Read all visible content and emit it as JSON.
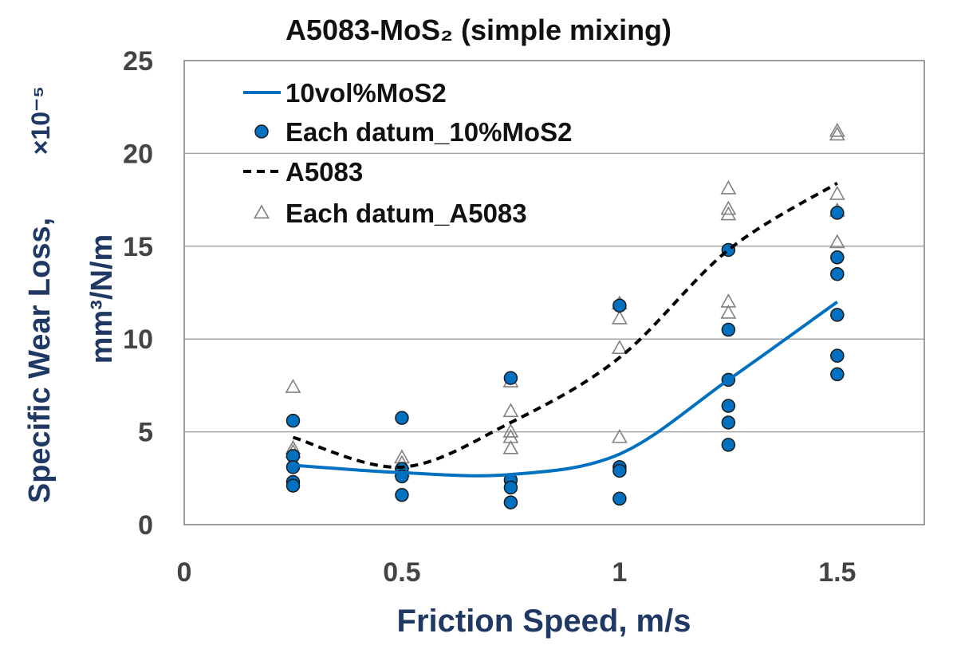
{
  "chart_data": {
    "type": "scatter",
    "title": "A5083-MoS₂ (simple mixing)",
    "xlabel": "Friction Speed, m/s",
    "ylabel": "Specific Wear Loss,",
    "ylabel_exponent": "×10⁻⁵",
    "ylabel_unit": "mm³/N/m",
    "xlim": [
      0,
      1.7
    ],
    "ylim": [
      0,
      25
    ],
    "x_ticks": [
      0,
      0.5,
      1,
      1.5
    ],
    "x_tick_labels": [
      "0",
      "0.5",
      "1",
      "1.5"
    ],
    "y_ticks": [
      0,
      5,
      10,
      15,
      20,
      25
    ],
    "y_tick_labels": [
      "0",
      "5",
      "10",
      "15",
      "20",
      "25"
    ],
    "grid": "horizontal",
    "legend_position": "top-left",
    "series": [
      {
        "name": "10vol%MoS2",
        "kind": "line",
        "style": "solid",
        "color": "#0070c0",
        "x": [
          0.25,
          0.5,
          0.75,
          1.0,
          1.25,
          1.5
        ],
        "y": [
          3.2,
          2.8,
          2.7,
          3.8,
          7.8,
          12.0
        ]
      },
      {
        "name": "Each datum_10%MoS2",
        "kind": "scatter",
        "marker": "circle",
        "color": "#0070c0",
        "points": [
          [
            0.25,
            5.6
          ],
          [
            0.25,
            3.7
          ],
          [
            0.25,
            3.1
          ],
          [
            0.25,
            2.3
          ],
          [
            0.25,
            2.1
          ],
          [
            0.5,
            5.75
          ],
          [
            0.5,
            3.0
          ],
          [
            0.5,
            2.6
          ],
          [
            0.5,
            1.6
          ],
          [
            0.75,
            7.9
          ],
          [
            0.75,
            2.4
          ],
          [
            0.75,
            2.0
          ],
          [
            0.75,
            1.2
          ],
          [
            1.0,
            11.8
          ],
          [
            1.0,
            3.1
          ],
          [
            1.0,
            2.9
          ],
          [
            1.0,
            1.4
          ],
          [
            1.25,
            14.8
          ],
          [
            1.25,
            10.5
          ],
          [
            1.25,
            7.8
          ],
          [
            1.25,
            6.4
          ],
          [
            1.25,
            5.5
          ],
          [
            1.25,
            4.3
          ],
          [
            1.5,
            16.8
          ],
          [
            1.5,
            14.4
          ],
          [
            1.5,
            13.5
          ],
          [
            1.5,
            11.3
          ],
          [
            1.5,
            9.1
          ],
          [
            1.5,
            8.1
          ]
        ]
      },
      {
        "name": "A5083",
        "kind": "line",
        "style": "dashed",
        "color": "#000000",
        "x": [
          0.25,
          0.5,
          0.75,
          1.0,
          1.25,
          1.5
        ],
        "y": [
          4.7,
          3.1,
          5.5,
          9.0,
          14.8,
          18.4
        ]
      },
      {
        "name": "Each datum_A5083",
        "kind": "scatter",
        "marker": "triangle",
        "color": "#808080",
        "points": [
          [
            0.25,
            7.4
          ],
          [
            0.25,
            4.1
          ],
          [
            0.25,
            3.9
          ],
          [
            0.5,
            3.6
          ],
          [
            0.5,
            3.3
          ],
          [
            0.5,
            2.9
          ],
          [
            0.75,
            7.7
          ],
          [
            0.75,
            6.1
          ],
          [
            0.75,
            5.0
          ],
          [
            0.75,
            4.7
          ],
          [
            0.75,
            4.1
          ],
          [
            1.0,
            11.9
          ],
          [
            1.0,
            11.1
          ],
          [
            1.0,
            9.5
          ],
          [
            1.0,
            4.7
          ],
          [
            1.25,
            18.1
          ],
          [
            1.25,
            17.0
          ],
          [
            1.25,
            16.7
          ],
          [
            1.25,
            12.0
          ],
          [
            1.25,
            11.4
          ],
          [
            1.5,
            21.2
          ],
          [
            1.5,
            21.0
          ],
          [
            1.5,
            17.8
          ],
          [
            1.5,
            16.9
          ],
          [
            1.5,
            15.2
          ]
        ]
      }
    ]
  }
}
